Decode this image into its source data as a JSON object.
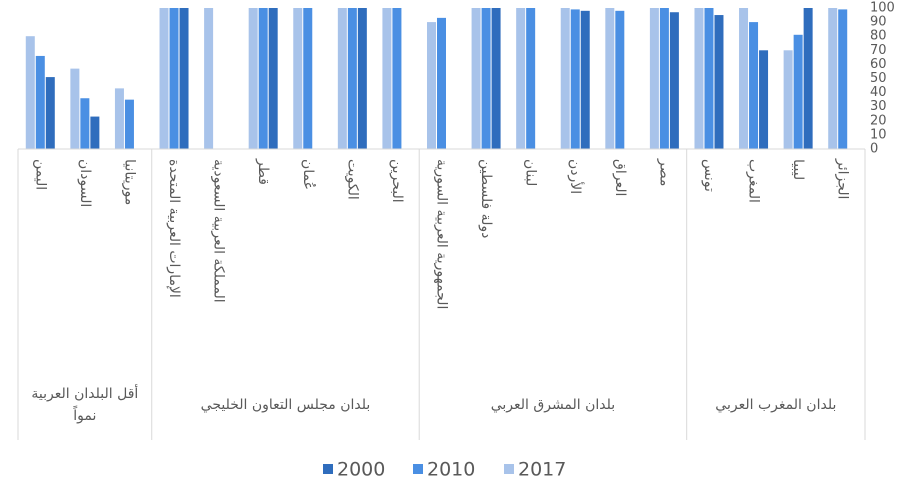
{
  "chart_data": {
    "type": "bar",
    "x_reversed": true,
    "y_axis_side": "right",
    "groups": [
      {
        "name": "بلدان المغرب العربي",
        "categories": [
          "الجزائر",
          "ليبيا",
          "المغرب",
          "تونس"
        ]
      },
      {
        "name": "بلدان المشرق العربي",
        "categories": [
          "مصر",
          "العراق",
          "الأردن",
          "لبنان",
          "دولة فلسطين",
          "الجمهورية العربية السورية"
        ]
      },
      {
        "name": "بلدان مجلس التعاون الخليجي",
        "categories": [
          "البحرين",
          "الكويت",
          "عُمان",
          "قطر",
          "المملكة العربية السعودية",
          "الإمارات العربية المتحدة"
        ]
      },
      {
        "name": "أقل البلدان العربية نمواً",
        "categories": [
          "موريتانيا",
          "السودان",
          "اليمن"
        ]
      }
    ],
    "series": [
      {
        "name": "2000",
        "color": "#2f6dbd",
        "values": [
          null,
          100,
          70,
          95,
          97,
          null,
          98,
          null,
          100,
          null,
          null,
          100,
          null,
          100,
          null,
          100,
          null,
          23,
          51
        ]
      },
      {
        "name": "2010",
        "color": "#4a8fe3",
        "values": [
          99,
          81,
          90,
          100,
          100,
          98,
          99,
          100,
          100,
          93,
          100,
          100,
          100,
          100,
          null,
          100,
          35,
          36,
          66
        ]
      },
      {
        "name": "2017",
        "color": "#a8c3ea",
        "values": [
          100,
          70,
          100,
          100,
          100,
          100,
          100,
          100,
          100,
          90,
          100,
          100,
          100,
          100,
          100,
          100,
          43,
          57,
          80
        ]
      }
    ],
    "ylim": [
      0,
      100
    ],
    "yticks": [
      0,
      10,
      20,
      30,
      40,
      50,
      60,
      70,
      80,
      90,
      100
    ],
    "grid": false,
    "legend": "bottom"
  }
}
